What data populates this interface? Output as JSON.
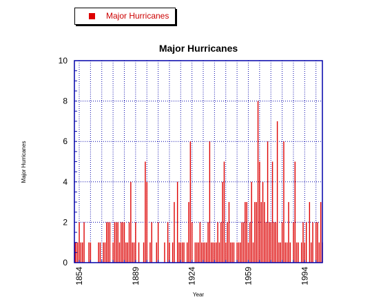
{
  "legend": {
    "label": "Major Hurricanes",
    "color": "#dd0000"
  },
  "chart_data": {
    "type": "bar",
    "title": "Major Hurricanes",
    "xlabel": "Year",
    "ylabel": "Major Hurricanes",
    "ylim": [
      0,
      10
    ],
    "xlim": [
      1851,
      2005
    ],
    "yticks": [
      0,
      2,
      4,
      6,
      8,
      10
    ],
    "xticks": [
      1854,
      1889,
      1924,
      1959,
      1994
    ],
    "grid": true,
    "legend_position": "top-left",
    "series": [
      {
        "name": "Major Hurricanes",
        "color": "#dd0000",
        "x": [
          1851,
          1852,
          1853,
          1854,
          1855,
          1856,
          1857,
          1858,
          1859,
          1860,
          1861,
          1862,
          1863,
          1864,
          1865,
          1866,
          1867,
          1868,
          1869,
          1870,
          1871,
          1872,
          1873,
          1874,
          1875,
          1876,
          1877,
          1878,
          1879,
          1880,
          1881,
          1882,
          1883,
          1884,
          1885,
          1886,
          1887,
          1888,
          1889,
          1890,
          1891,
          1892,
          1893,
          1894,
          1895,
          1896,
          1897,
          1898,
          1899,
          1900,
          1901,
          1902,
          1903,
          1904,
          1905,
          1906,
          1907,
          1908,
          1909,
          1910,
          1911,
          1912,
          1913,
          1914,
          1915,
          1916,
          1917,
          1918,
          1919,
          1920,
          1921,
          1922,
          1923,
          1924,
          1925,
          1926,
          1927,
          1928,
          1929,
          1930,
          1931,
          1932,
          1933,
          1934,
          1935,
          1936,
          1937,
          1938,
          1939,
          1940,
          1941,
          1942,
          1943,
          1944,
          1945,
          1946,
          1947,
          1948,
          1949,
          1950,
          1951,
          1952,
          1953,
          1954,
          1955,
          1956,
          1957,
          1958,
          1959,
          1960,
          1961,
          1962,
          1963,
          1964,
          1965,
          1966,
          1967,
          1968,
          1969,
          1970,
          1971,
          1972,
          1973,
          1974,
          1975,
          1976,
          1977,
          1978,
          1979,
          1980,
          1981,
          1982,
          1983,
          1984,
          1985,
          1986,
          1987,
          1988,
          1989,
          1990,
          1991,
          1992,
          1993,
          1994,
          1995,
          1996,
          1997,
          1998,
          1999,
          2000,
          2001,
          2002,
          2003,
          2004,
          2005
        ],
        "values": [
          1,
          1,
          1,
          2,
          1,
          1,
          2,
          0,
          0,
          1,
          1,
          0,
          0,
          0,
          0,
          1,
          1,
          0,
          1,
          1,
          2,
          2,
          2,
          0,
          1,
          2,
          2,
          2,
          1,
          2,
          2,
          2,
          1,
          1,
          2,
          4,
          1,
          1,
          2,
          0,
          1,
          0,
          0,
          1,
          5,
          4,
          0,
          1,
          2,
          0,
          0,
          1,
          2,
          0,
          0,
          0,
          1,
          0,
          2,
          1,
          0,
          1,
          3,
          0,
          4,
          1,
          1,
          1,
          1,
          0,
          1,
          3,
          6,
          2,
          0,
          1,
          1,
          1,
          2,
          1,
          1,
          1,
          1,
          2,
          6,
          1,
          1,
          1,
          1,
          2,
          1,
          2,
          4,
          5,
          1,
          2,
          3,
          1,
          1,
          1,
          0,
          1,
          1,
          1,
          2,
          2,
          3,
          3,
          1,
          2,
          4,
          1,
          3,
          3,
          8,
          5,
          3,
          4,
          3,
          2,
          6,
          2,
          2,
          5,
          2,
          2,
          7,
          1,
          1,
          2,
          6,
          1,
          1,
          3,
          1,
          0,
          2,
          5,
          1,
          1,
          0,
          1,
          2,
          1,
          2,
          0,
          3,
          1,
          2,
          0,
          2,
          2,
          1,
          3,
          1
        ]
      }
    ]
  }
}
